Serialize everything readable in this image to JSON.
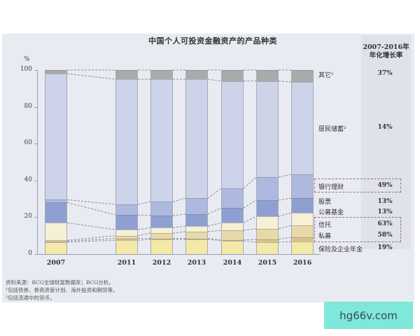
{
  "chart_data": {
    "type": "bar",
    "stacked": true,
    "title": "中国个人可投资金融资产的产品种类",
    "xlabel": "",
    "ylabel": "%",
    "ylim": [
      0,
      100
    ],
    "yticks": [
      0,
      20,
      40,
      60,
      80,
      100
    ],
    "categories": [
      "2007",
      "2011",
      "2012",
      "2013",
      "2014",
      "2015",
      "2016"
    ],
    "series": [
      {
        "name": "保险及企业年金",
        "color": "#f3e9a8",
        "growth": "19%",
        "values": [
          6.5,
          7.5,
          8,
          8,
          7.2,
          6.5,
          6.8
        ]
      },
      {
        "name": "私募",
        "color": "#d9c48e",
        "growth": "58%",
        "values": [
          0.5,
          1,
          0.5,
          0.5,
          0.5,
          1.5,
          2.3
        ]
      },
      {
        "name": "信托",
        "color": "#e8d9a8",
        "growth": "63%",
        "values": [
          0.5,
          1.5,
          2.9,
          3.7,
          5.2,
          5.7,
          6.5
        ]
      },
      {
        "name": "公募基金",
        "color": "#f6f0d6",
        "growth": "13%",
        "values": [
          9.5,
          3.3,
          3,
          3,
          4.2,
          6.8,
          6.8
        ]
      },
      {
        "name": "股票",
        "color": "#8e9fd2",
        "growth": "13%",
        "values": [
          11,
          8,
          6.5,
          6.5,
          8,
          8.8,
          8
        ]
      },
      {
        "name": "银行理财",
        "color": "#aeb9e0",
        "growth": "49%",
        "values": [
          1.5,
          5.7,
          7.6,
          8.7,
          10.6,
          12.5,
          12.9
        ]
      },
      {
        "name": "居民储蓄",
        "color": "#cdd3e8",
        "growth": "14%",
        "values": [
          68.5,
          68,
          66.5,
          64.6,
          58.3,
          52.2,
          50.2
        ]
      },
      {
        "name": "其它",
        "color": "#a9abab",
        "growth": "37%",
        "values": [
          2,
          5,
          5,
          5,
          6,
          6,
          6.5
        ]
      }
    ],
    "growth_column_header": "2007-2016年 年化增长率",
    "highlighted_groups": [
      [
        "银行理财"
      ],
      [
        "信托",
        "私募"
      ]
    ],
    "legend_position": "right"
  },
  "header": {
    "title": "中国个人可投资金融资产的产品种类",
    "growth_header_line1": "2007-2016年",
    "growth_header_line2": "年化增长率",
    "y_unit": "%"
  },
  "legend": [
    {
      "label": "其它¹",
      "value": "37%"
    },
    {
      "label": "居民储蓄²",
      "value": "14%"
    },
    {
      "label": "银行理财",
      "value": "49%"
    },
    {
      "label": "股票",
      "value": "13%"
    },
    {
      "label": "公募基金",
      "value": "13%"
    },
    {
      "label": "信托",
      "value": "63%"
    },
    {
      "label": "私募",
      "value": "58%"
    },
    {
      "label": "保险及企业年金",
      "value": "19%"
    }
  ],
  "footnotes": [
    "资料来源：BCG全球财富数据库；BCG分析。",
    "¹包括债券、券商资管计划、海外投资和期货等。",
    "²包括流通中的货币。"
  ],
  "watermark": "hg66v.com"
}
